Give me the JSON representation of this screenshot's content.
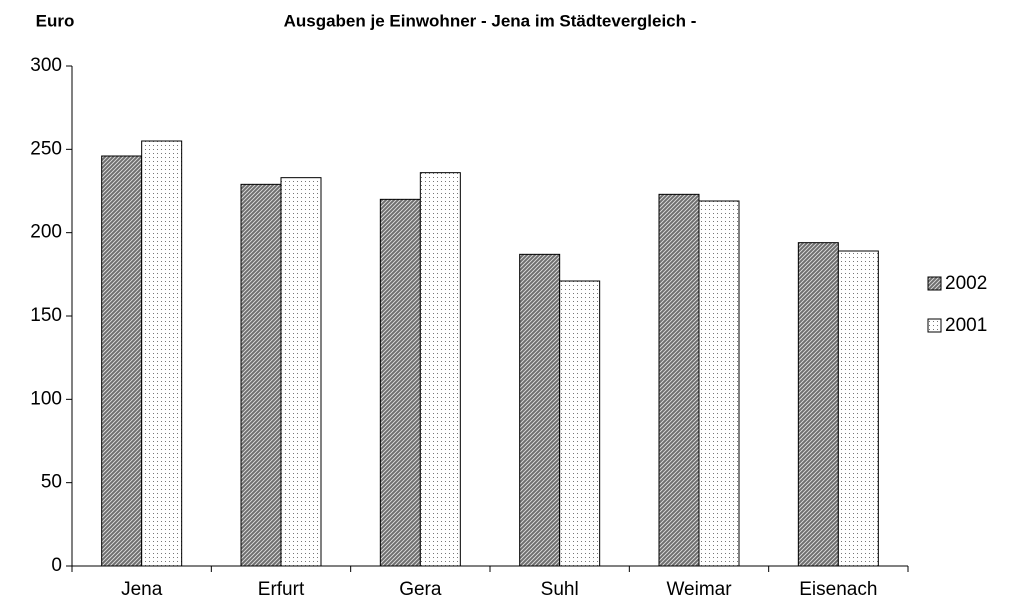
{
  "chart_data": {
    "type": "bar",
    "title": "Ausgaben je Einwohner  - Jena im Städtevergleich -",
    "y_axis_label": "Euro",
    "categories": [
      "Jena",
      "Erfurt",
      "Gera",
      "Suhl",
      "Weimar",
      "Eisenach"
    ],
    "series": [
      {
        "name": "2002",
        "color": "#6e6e6e",
        "values": [
          246,
          229,
          220,
          187,
          223,
          194
        ]
      },
      {
        "name": "2001",
        "color": "#ffffff",
        "values": [
          255,
          233,
          236,
          171,
          219,
          189
        ]
      }
    ],
    "ylim": [
      0,
      300
    ],
    "yticks": [
      0,
      50,
      100,
      150,
      200,
      250,
      300
    ],
    "legend": "right"
  }
}
